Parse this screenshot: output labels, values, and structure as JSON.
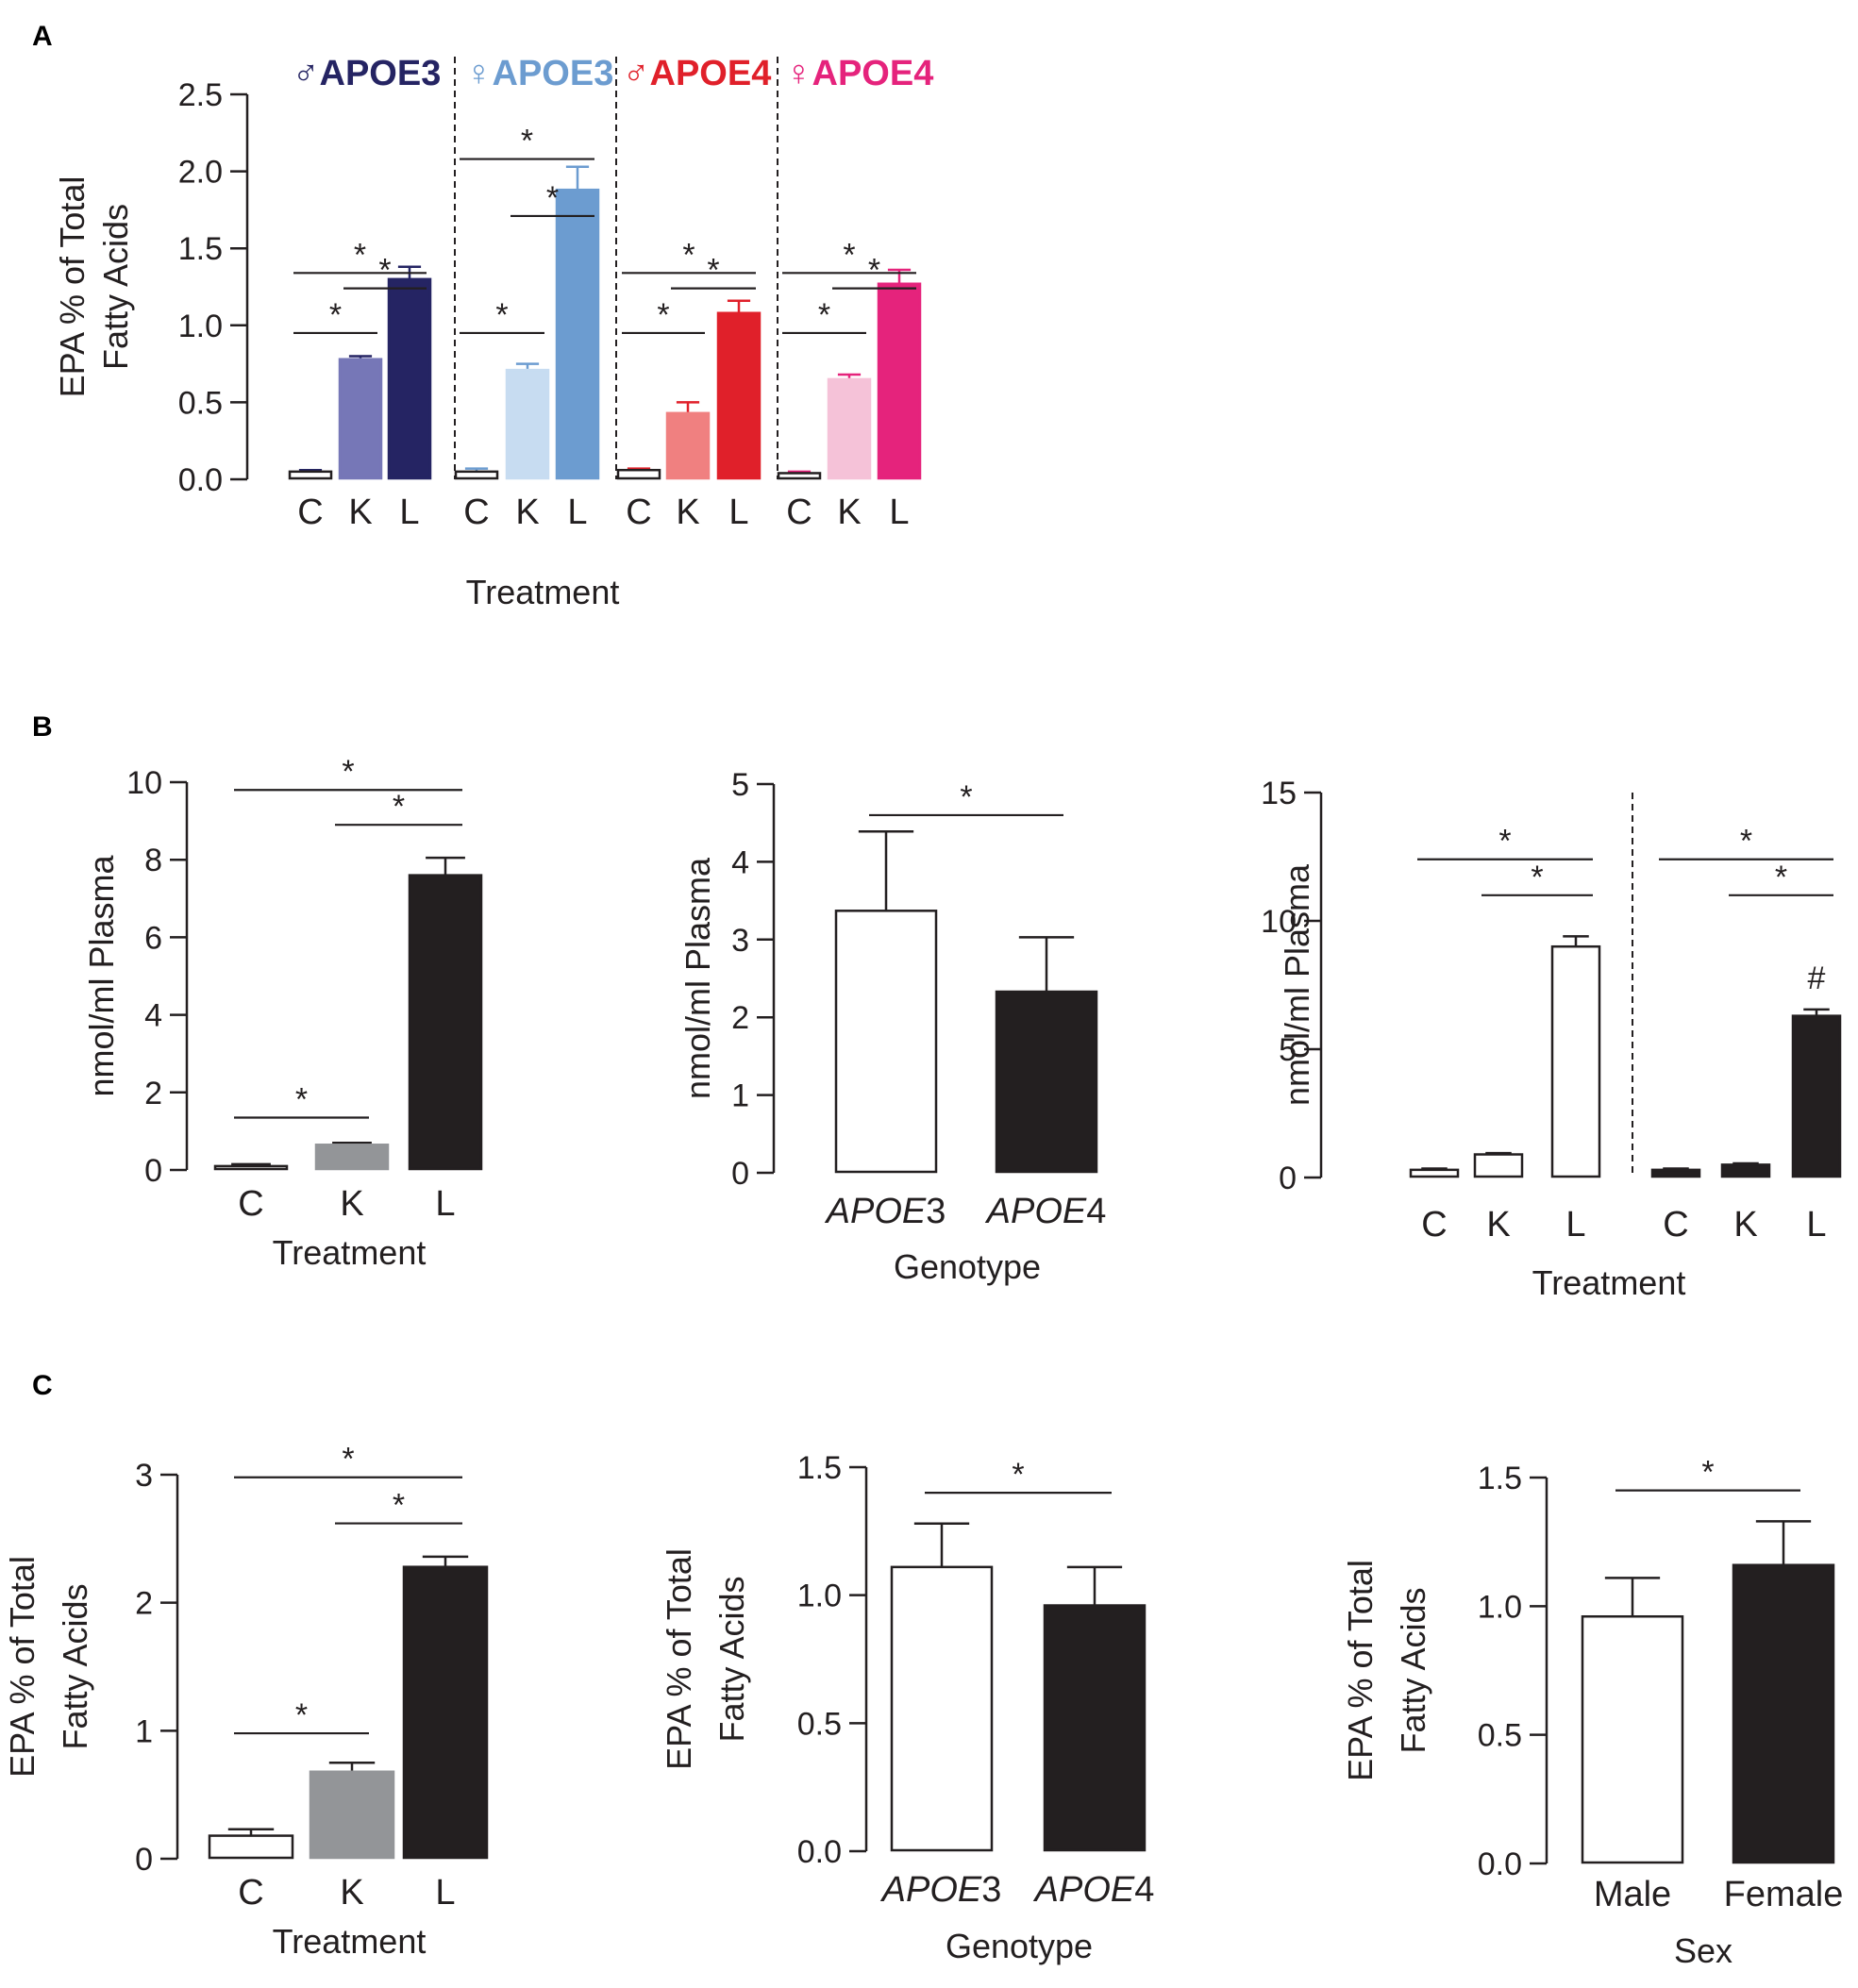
{
  "panels": [
    {
      "letter": "A"
    },
    {
      "letter": "B"
    },
    {
      "letter": "C"
    }
  ],
  "chart_data": [
    {
      "id": "A",
      "type": "bar",
      "ylabel": [
        "EPA % of Total",
        "Fatty Acids"
      ],
      "xlabel": "Treatment",
      "ylim": [
        0,
        2.5
      ],
      "yticks": [
        "0.0",
        "0.5",
        "1.0",
        "1.5",
        "2.0",
        "2.5"
      ],
      "groups": [
        {
          "title": "APOE3",
          "symbol": "♂",
          "color": "#252463",
          "categories": [
            "C",
            "K",
            "L"
          ],
          "values": [
            0.05,
            0.78,
            1.3
          ],
          "errors": [
            0.01,
            0.02,
            0.08
          ],
          "colors": [
            "#ffffff",
            "#7677b7",
            "#252463"
          ],
          "sig": [
            {
              "a": 0,
              "b": 1,
              "label": "*"
            },
            {
              "a": 0,
              "b": 2,
              "label": "*"
            },
            {
              "a": 1,
              "b": 2,
              "label": "*"
            }
          ]
        },
        {
          "title": "APOE3",
          "symbol": "♀",
          "color": "#6c9cd0",
          "categories": [
            "C",
            "K",
            "L"
          ],
          "values": [
            0.05,
            0.71,
            1.88
          ],
          "errors": [
            0.02,
            0.04,
            0.15
          ],
          "colors": [
            "#ffffff",
            "#c7dcf1",
            "#6c9cd0"
          ],
          "sig": [
            {
              "a": 0,
              "b": 1,
              "label": "*"
            },
            {
              "a": 0,
              "b": 2,
              "label": "*"
            },
            {
              "a": 1,
              "b": 2,
              "label": "*"
            }
          ]
        },
        {
          "title": "APOE4",
          "symbol": "♂",
          "color": "#e0202a",
          "categories": [
            "C",
            "K",
            "L"
          ],
          "values": [
            0.06,
            0.43,
            1.08
          ],
          "errors": [
            0.01,
            0.07,
            0.08
          ],
          "colors": [
            "#ffffff",
            "#f08080",
            "#e0202a"
          ],
          "sig": [
            {
              "a": 0,
              "b": 1,
              "label": "*"
            },
            {
              "a": 0,
              "b": 2,
              "label": "*"
            },
            {
              "a": 1,
              "b": 2,
              "label": "*"
            }
          ]
        },
        {
          "title": "APOE4",
          "symbol": "♀",
          "color": "#e5237c",
          "categories": [
            "C",
            "K",
            "L"
          ],
          "values": [
            0.04,
            0.65,
            1.27
          ],
          "errors": [
            0.01,
            0.03,
            0.09
          ],
          "colors": [
            "#ffffff",
            "#f5c2d8",
            "#e5237c"
          ],
          "sig": [
            {
              "a": 0,
              "b": 1,
              "label": "*"
            },
            {
              "a": 0,
              "b": 2,
              "label": "*"
            },
            {
              "a": 1,
              "b": 2,
              "label": "*"
            }
          ]
        }
      ]
    },
    {
      "id": "B1",
      "type": "bar",
      "ylabel": [
        "nmol/ml Plasma"
      ],
      "xlabel": "Treatment",
      "ylim": [
        0,
        10
      ],
      "yticks": [
        "0",
        "2",
        "4",
        "6",
        "8",
        "10"
      ],
      "categories": [
        "C",
        "K",
        "L"
      ],
      "values": [
        0.1,
        0.65,
        7.6
      ],
      "errors": [
        0.05,
        0.05,
        0.45
      ],
      "colors": [
        "#ffffff",
        "#939598",
        "#231f20"
      ],
      "sig": [
        {
          "a": 0,
          "b": 1,
          "label": "*"
        },
        {
          "a": 0,
          "b": 2,
          "label": "*"
        },
        {
          "a": 1,
          "b": 2,
          "label": "*"
        }
      ]
    },
    {
      "id": "B2",
      "type": "bar",
      "ylabel": [
        "nmol/ml Plasma"
      ],
      "xlabel": "Genotype",
      "ylim": [
        0,
        5
      ],
      "yticks": [
        "0",
        "1",
        "2",
        "3",
        "4",
        "5"
      ],
      "categories": [
        [
          "APOE",
          "3"
        ],
        [
          "APOE",
          "4"
        ]
      ],
      "values": [
        3.37,
        2.33
      ],
      "errors": [
        1.02,
        0.7
      ],
      "colors": [
        "#ffffff",
        "#231f20"
      ],
      "sig": [
        {
          "a": 0,
          "b": 1,
          "label": "*"
        }
      ]
    },
    {
      "id": "B3",
      "type": "bar",
      "ylabel": [
        "nmol/ml Plasma"
      ],
      "xlabel": "Treatment",
      "ylim": [
        0,
        15
      ],
      "yticks": [
        "0",
        "5",
        "10",
        "15"
      ],
      "groups": [
        {
          "categories": [
            "C",
            "K",
            "L"
          ],
          "values": [
            0.3,
            0.9,
            9.0
          ],
          "errors": [
            0.05,
            0.05,
            0.4
          ],
          "colors": [
            "#ffffff",
            "#ffffff",
            "#ffffff"
          ],
          "sig": [
            {
              "a": 0,
              "b": 2,
              "label": "*"
            },
            {
              "a": 1,
              "b": 2,
              "label": "*"
            }
          ]
        },
        {
          "categories": [
            "C",
            "K",
            "L"
          ],
          "values": [
            0.3,
            0.5,
            6.3
          ],
          "errors": [
            0.05,
            0.05,
            0.25
          ],
          "colors": [
            "#231f20",
            "#231f20",
            "#231f20"
          ],
          "sig": [
            {
              "a": 0,
              "b": 2,
              "label": "*"
            },
            {
              "a": 1,
              "b": 2,
              "label": "*"
            }
          ],
          "annotation": "#"
        }
      ]
    },
    {
      "id": "C1",
      "type": "bar",
      "ylabel": [
        "EPA % of Total",
        "Fatty Acids"
      ],
      "xlabel": "Treatment",
      "ylim": [
        0,
        3
      ],
      "yticks": [
        "0",
        "1",
        "2",
        "3"
      ],
      "categories": [
        "C",
        "K",
        "L"
      ],
      "values": [
        0.18,
        0.68,
        2.28
      ],
      "errors": [
        0.05,
        0.07,
        0.08
      ],
      "colors": [
        "#ffffff",
        "#939598",
        "#231f20"
      ],
      "sig": [
        {
          "a": 0,
          "b": 1,
          "label": "*"
        },
        {
          "a": 0,
          "b": 2,
          "label": "*"
        },
        {
          "a": 1,
          "b": 2,
          "label": "*"
        }
      ]
    },
    {
      "id": "C2",
      "type": "bar",
      "ylabel": [
        "EPA % of Total",
        "Fatty Acids"
      ],
      "xlabel": "Genotype",
      "ylim": [
        0,
        1.5
      ],
      "yticks": [
        "0.0",
        "0.5",
        "1.0",
        "1.5"
      ],
      "categories": [
        [
          "APOE",
          "3"
        ],
        [
          "APOE",
          "4"
        ]
      ],
      "values": [
        1.11,
        0.96
      ],
      "errors": [
        0.17,
        0.15
      ],
      "colors": [
        "#ffffff",
        "#231f20"
      ],
      "sig": [
        {
          "a": 0,
          "b": 1,
          "label": "*"
        }
      ]
    },
    {
      "id": "C3",
      "type": "bar",
      "ylabel": [
        "EPA % of Total",
        "Fatty Acids"
      ],
      "xlabel": "Sex",
      "ylim": [
        0,
        1.5
      ],
      "yticks": [
        "0.0",
        "0.5",
        "1.0",
        "1.5"
      ],
      "categories": [
        "Male",
        "Female"
      ],
      "values": [
        0.96,
        1.16
      ],
      "errors": [
        0.15,
        0.17
      ],
      "colors": [
        "#ffffff",
        "#231f20"
      ],
      "sig": [
        {
          "a": 0,
          "b": 1,
          "label": "*"
        }
      ]
    }
  ]
}
